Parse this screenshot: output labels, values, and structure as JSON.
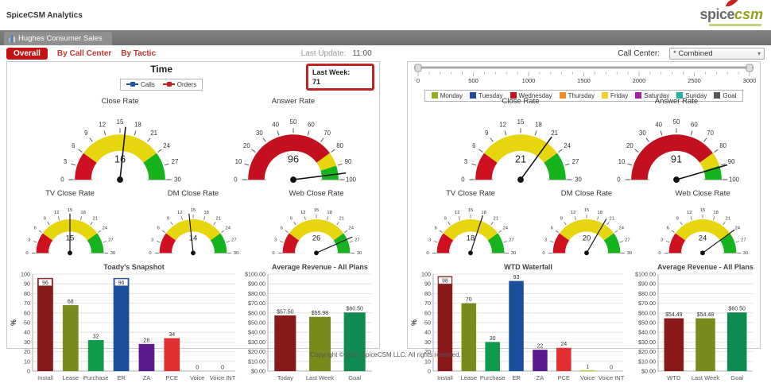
{
  "header": {
    "app_title": "SpiceCSM Analytics",
    "logo": {
      "part1": "spice",
      "part2": "csm"
    }
  },
  "tabs": {
    "active": "Hughes Consumer Sales"
  },
  "toolbar": {
    "overall": "Overall",
    "by_call_center": "By Call Center",
    "by_tactic": "By Tactic",
    "last_update_label": "Last Update:",
    "last_update_value": "11:00",
    "call_center_label": "Call Center:",
    "call_center_value": "* Combined"
  },
  "left_panel": {
    "time": {
      "title": "Time",
      "legend": [
        {
          "label": "Calls",
          "color": "#2253a2"
        },
        {
          "label": "Orders",
          "color": "#c42222"
        }
      ]
    },
    "last_week": {
      "label": "Last Week:",
      "value": "71"
    },
    "gauges": {
      "close_rate": {
        "title": "Close Rate",
        "value": 16,
        "min": 0,
        "max": 30,
        "step": 3,
        "zones": [
          {
            "from": 0,
            "to": 6,
            "color": "#cf1020"
          },
          {
            "from": 6,
            "to": 24,
            "color": "#e7d60d"
          },
          {
            "from": 24,
            "to": 30,
            "color": "#15b31e"
          }
        ]
      },
      "answer_rate": {
        "title": "Answer Rate",
        "value": 96,
        "min": 0,
        "max": 100,
        "step": 10,
        "zones": [
          {
            "from": 0,
            "to": 80,
            "color": "#c30f1e"
          },
          {
            "from": 80,
            "to": 90,
            "color": "#e7d60d"
          },
          {
            "from": 90,
            "to": 100,
            "color": "#15b31e"
          }
        ]
      },
      "tv_close_rate": {
        "title": "TV Close Rate",
        "value": 15,
        "min": 0,
        "max": 30,
        "step": 3,
        "zones": [
          {
            "from": 0,
            "to": 6,
            "color": "#cf1020"
          },
          {
            "from": 6,
            "to": 24,
            "color": "#e7d60d"
          },
          {
            "from": 24,
            "to": 30,
            "color": "#15b31e"
          }
        ]
      },
      "dm_close_rate": {
        "title": "DM Close Rate",
        "value": 14,
        "min": 0,
        "max": 30,
        "step": 3,
        "zones": [
          {
            "from": 0,
            "to": 6,
            "color": "#cf1020"
          },
          {
            "from": 6,
            "to": 24,
            "color": "#e7d60d"
          },
          {
            "from": 24,
            "to": 30,
            "color": "#15b31e"
          }
        ]
      },
      "web_close_rate": {
        "title": "Web Close Rate",
        "value": 26,
        "min": 0,
        "max": 30,
        "step": 3,
        "zones": [
          {
            "from": 0,
            "to": 6,
            "color": "#cf1020"
          },
          {
            "from": 6,
            "to": 24,
            "color": "#e7d60d"
          },
          {
            "from": 24,
            "to": 30,
            "color": "#15b31e"
          }
        ]
      }
    },
    "snapshot_chart": {
      "title": "Toady's Snapshot",
      "ylabel": "%",
      "ymin": 0,
      "ymax": 100,
      "ystep": 10,
      "badge_threshold": 95,
      "categories": [
        "Install",
        "Lease",
        "Purchase",
        "ER",
        "ZA",
        "PCE",
        "Voice",
        "Voice INT"
      ],
      "values": [
        96,
        68,
        32,
        96,
        28,
        34,
        0,
        0
      ],
      "colors": [
        "#8a1a1a",
        "#7a8b1e",
        "#0e9c4c",
        "#1b4f9c",
        "#5c1a8e",
        "#e23030",
        "#b9cb2d",
        "#b9cb2d"
      ]
    },
    "revenue_chart": {
      "title": "Average Revenue - All Plans",
      "ymin": 0,
      "ymax": 100,
      "ystep": 10,
      "y_prefix": "$",
      "categories": [
        "Today",
        "Last Week",
        "Goal"
      ],
      "values": [
        57.5,
        55.98,
        60.5
      ],
      "value_labels": [
        "$57.50",
        "$55.98",
        "$60.50"
      ],
      "colors": [
        "#8a1a1a",
        "#7a8b1e",
        "#0e8c50"
      ]
    }
  },
  "right_panel": {
    "slider": {
      "min": 0,
      "max": 3000,
      "minor_step": 100,
      "major_step": 500
    },
    "day_legend": [
      {
        "label": "Monday",
        "color": "#8fae22"
      },
      {
        "label": "Tuesday",
        "color": "#1f4e9e"
      },
      {
        "label": "Wednesday",
        "color": "#c01218"
      },
      {
        "label": "Thursday",
        "color": "#f08c28"
      },
      {
        "label": "Friday",
        "color": "#f0d028"
      },
      {
        "label": "Saturday",
        "color": "#a81ca8"
      },
      {
        "label": "Sunday",
        "color": "#28afa4"
      },
      {
        "label": "Goal",
        "color": "#55584f"
      }
    ],
    "gauges": {
      "close_rate": {
        "title": "Close Rate",
        "value": 21,
        "min": 0,
        "max": 30,
        "step": 3,
        "zones": [
          {
            "from": 0,
            "to": 6,
            "color": "#cf1020"
          },
          {
            "from": 6,
            "to": 24,
            "color": "#e7d60d"
          },
          {
            "from": 24,
            "to": 30,
            "color": "#15b31e"
          }
        ]
      },
      "answer_rate": {
        "title": "Answer Rate",
        "value": 91,
        "min": 0,
        "max": 100,
        "step": 10,
        "zones": [
          {
            "from": 0,
            "to": 80,
            "color": "#c30f1e"
          },
          {
            "from": 80,
            "to": 90,
            "color": "#e7d60d"
          },
          {
            "from": 90,
            "to": 100,
            "color": "#15b31e"
          }
        ]
      },
      "tv_close_rate": {
        "title": "TV Close Rate",
        "value": 18,
        "min": 0,
        "max": 30,
        "step": 3,
        "zones": [
          {
            "from": 0,
            "to": 6,
            "color": "#cf1020"
          },
          {
            "from": 6,
            "to": 24,
            "color": "#e7d60d"
          },
          {
            "from": 24,
            "to": 30,
            "color": "#15b31e"
          }
        ]
      },
      "dm_close_rate": {
        "title": "DM Close Rate",
        "value": 20,
        "min": 0,
        "max": 30,
        "step": 3,
        "zones": [
          {
            "from": 0,
            "to": 6,
            "color": "#cf1020"
          },
          {
            "from": 6,
            "to": 24,
            "color": "#e7d60d"
          },
          {
            "from": 24,
            "to": 30,
            "color": "#15b31e"
          }
        ]
      },
      "web_close_rate": {
        "title": "Web Close Rate",
        "value": 24,
        "min": 0,
        "max": 30,
        "step": 3,
        "zones": [
          {
            "from": 0,
            "to": 6,
            "color": "#cf1020"
          },
          {
            "from": 6,
            "to": 24,
            "color": "#e7d60d"
          },
          {
            "from": 24,
            "to": 30,
            "color": "#15b31e"
          }
        ]
      }
    },
    "waterfall_chart": {
      "title": "WTD Waterfall",
      "ylabel": "%",
      "ymin": 0,
      "ymax": 100,
      "ystep": 10,
      "badge_threshold": 95,
      "categories": [
        "Install",
        "Lease",
        "Purchase",
        "ER",
        "ZA",
        "PCE",
        "Voice",
        "Voice INT"
      ],
      "values": [
        98,
        70,
        30,
        93,
        22,
        24,
        1,
        0
      ],
      "colors": [
        "#8a1a1a",
        "#7a8b1e",
        "#0e9c4c",
        "#1b4f9c",
        "#5c1a8e",
        "#e23030",
        "#b9cb2d",
        "#b9cb2d"
      ]
    },
    "revenue_chart": {
      "title": "Average Revenue - All Plans",
      "ymin": 0,
      "ymax": 100,
      "ystep": 10,
      "y_prefix": "$",
      "categories": [
        "WTD",
        "Last Week",
        "Goal"
      ],
      "values": [
        54.49,
        54.48,
        60.5
      ],
      "value_labels": [
        "$54.49",
        "$54.48",
        "$60.50"
      ],
      "colors": [
        "#8a1a1a",
        "#7a8b1e",
        "#0e8c50"
      ]
    }
  },
  "footer": {
    "copyright": "Copyright © 2013 SpiceCSM LLC. All rights reserved."
  },
  "chart_data": [
    {
      "type": "gauge",
      "title": "Close Rate (Today)",
      "value": 16,
      "range": [
        0,
        30
      ]
    },
    {
      "type": "gauge",
      "title": "Answer Rate (Today)",
      "value": 96,
      "range": [
        0,
        100
      ]
    },
    {
      "type": "gauge",
      "title": "TV Close Rate (Today)",
      "value": 15,
      "range": [
        0,
        30
      ]
    },
    {
      "type": "gauge",
      "title": "DM Close Rate (Today)",
      "value": 14,
      "range": [
        0,
        30
      ]
    },
    {
      "type": "gauge",
      "title": "Web Close Rate (Today)",
      "value": 26,
      "range": [
        0,
        30
      ]
    },
    {
      "type": "gauge",
      "title": "Close Rate (WTD)",
      "value": 21,
      "range": [
        0,
        30
      ]
    },
    {
      "type": "gauge",
      "title": "Answer Rate (WTD)",
      "value": 91,
      "range": [
        0,
        100
      ]
    },
    {
      "type": "gauge",
      "title": "TV Close Rate (WTD)",
      "value": 18,
      "range": [
        0,
        30
      ]
    },
    {
      "type": "gauge",
      "title": "DM Close Rate (WTD)",
      "value": 20,
      "range": [
        0,
        30
      ]
    },
    {
      "type": "gauge",
      "title": "Web Close Rate (WTD)",
      "value": 24,
      "range": [
        0,
        30
      ]
    },
    {
      "type": "bar",
      "title": "Toady's Snapshot",
      "xlabel": "",
      "ylabel": "%",
      "ylim": [
        0,
        100
      ],
      "categories": [
        "Install",
        "Lease",
        "Purchase",
        "ER",
        "ZA",
        "PCE",
        "Voice",
        "Voice INT"
      ],
      "values": [
        96,
        68,
        32,
        96,
        28,
        34,
        0,
        0
      ]
    },
    {
      "type": "bar",
      "title": "Average Revenue - All Plans (Today)",
      "ylim": [
        0,
        100
      ],
      "categories": [
        "Today",
        "Last Week",
        "Goal"
      ],
      "values": [
        57.5,
        55.98,
        60.5
      ]
    },
    {
      "type": "bar",
      "title": "WTD Waterfall",
      "xlabel": "",
      "ylabel": "%",
      "ylim": [
        0,
        100
      ],
      "categories": [
        "Install",
        "Lease",
        "Purchase",
        "ER",
        "ZA",
        "PCE",
        "Voice",
        "Voice INT"
      ],
      "values": [
        98,
        70,
        30,
        93,
        22,
        24,
        1,
        0
      ]
    },
    {
      "type": "bar",
      "title": "Average Revenue - All Plans (WTD)",
      "ylim": [
        0,
        100
      ],
      "categories": [
        "WTD",
        "Last Week",
        "Goal"
      ],
      "values": [
        54.49,
        54.48,
        60.5
      ]
    }
  ]
}
